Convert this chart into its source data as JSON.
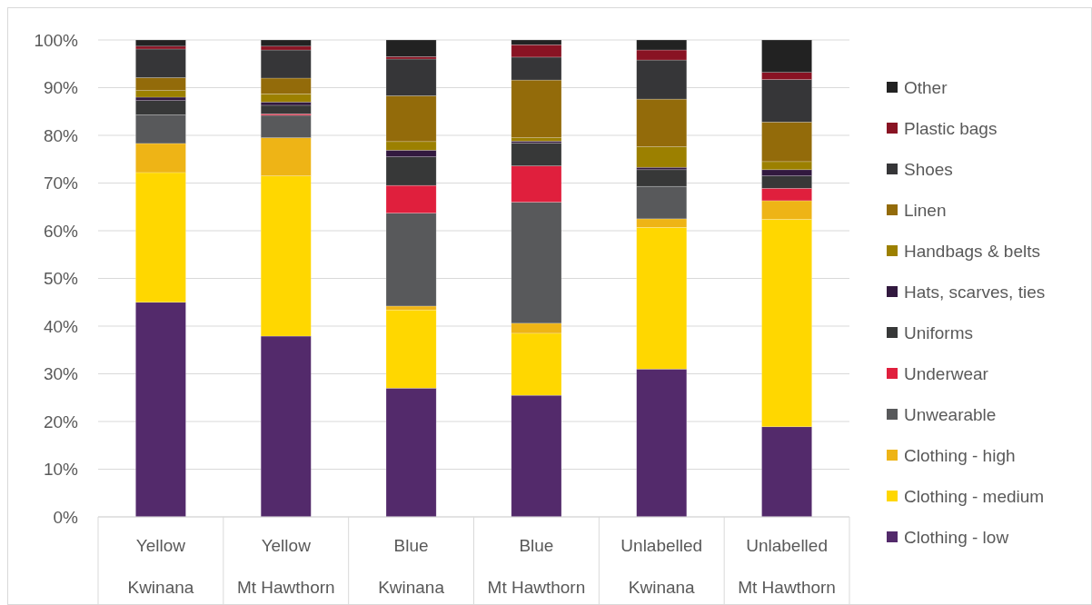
{
  "chart_data": {
    "type": "bar",
    "stacked": true,
    "grid": "y",
    "legend": "right",
    "categories": [
      "Yellow\nKwinana",
      "Yellow\nMt Hawthorn",
      "Blue\nKwinana",
      "Blue\nMt Hawthorn",
      "Unlabelled\nKwinana",
      "Unlabelled\nMt Hawthorn"
    ],
    "ylim": [
      0,
      100
    ],
    "yticks": [
      {
        "value": 0,
        "label": "0%"
      },
      {
        "value": 10,
        "label": "10%"
      },
      {
        "value": 20,
        "label": "20%"
      },
      {
        "value": 30,
        "label": "30%"
      },
      {
        "value": 40,
        "label": "40%"
      },
      {
        "value": 50,
        "label": "50%"
      },
      {
        "value": 60,
        "label": "60%"
      },
      {
        "value": 70,
        "label": "70%"
      },
      {
        "value": 80,
        "label": "80%"
      },
      {
        "value": 90,
        "label": "90%"
      },
      {
        "value": 100,
        "label": "100%"
      }
    ],
    "series": [
      {
        "name": "Clothing - low",
        "color": "#532a6b",
        "values": [
          45.0,
          37.9,
          27.0,
          25.5,
          31.0,
          18.9
        ]
      },
      {
        "name": "Clothing - medium",
        "color": "#ffd700",
        "values": [
          27.2,
          33.6,
          16.4,
          13.0,
          29.7,
          43.5
        ]
      },
      {
        "name": "Clothing - high",
        "color": "#eeb416",
        "values": [
          6.1,
          8.0,
          0.8,
          2.1,
          1.8,
          3.9
        ]
      },
      {
        "name": "Unwearable",
        "color": "#58595b",
        "values": [
          6.0,
          4.7,
          19.5,
          25.4,
          6.8,
          0
        ]
      },
      {
        "name": "Underwear",
        "color": "#e01f3d",
        "values": [
          null,
          0.3,
          5.8,
          7.6,
          0,
          2.6
        ]
      },
      {
        "name": "Uniforms",
        "color": "#373838",
        "values": [
          3.0,
          1.8,
          6.0,
          4.8,
          3.5,
          2.6
        ]
      },
      {
        "name": "Hats, scarves, ties",
        "color": "#32193f",
        "values": [
          0.7,
          0.7,
          1.4,
          0.4,
          0.5,
          1.3
        ]
      },
      {
        "name": "Handbags & belts",
        "color": "#9c8000",
        "values": [
          1.4,
          1.7,
          1.8,
          0.7,
          4.3,
          1.7
        ]
      },
      {
        "name": "Linen",
        "color": "#936b0a",
        "values": [
          2.7,
          3.3,
          9.6,
          12.1,
          10.0,
          8.3
        ]
      },
      {
        "name": "Shoes",
        "color": "#363638",
        "values": [
          6.0,
          5.9,
          7.7,
          4.8,
          8.2,
          8.9
        ]
      },
      {
        "name": "Plastic bags",
        "color": "#891323",
        "values": [
          0.6,
          0.8,
          0.5,
          2.6,
          2.1,
          1.5
        ]
      },
      {
        "name": "Other",
        "color": "#222222",
        "values": [
          1.3,
          1.3,
          3.5,
          1.0,
          2.1,
          6.8
        ]
      }
    ]
  }
}
